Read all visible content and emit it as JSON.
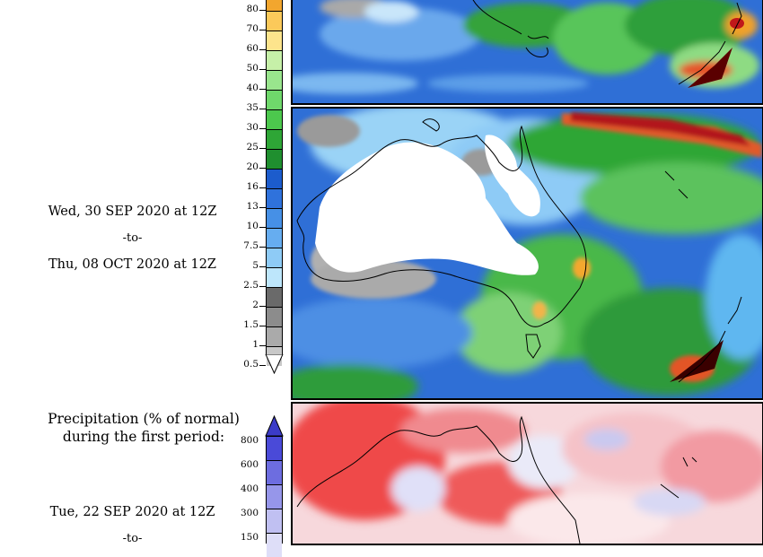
{
  "left_panel": {
    "period2": {
      "start": "Wed, 30 SEP 2020 at 12Z",
      "sep": "-to-",
      "end": "Thu, 08 OCT 2020 at 12Z"
    },
    "section2_title_line1": "Precipitation (% of normal)",
    "section2_title_line2": "during the first period:",
    "period1": {
      "start": "Tue, 22 SEP 2020 at 12Z",
      "sep": "-to-"
    }
  },
  "precip_colorbar": {
    "labels": [
      "80",
      "70",
      "60",
      "50",
      "40",
      "35",
      "30",
      "25",
      "20",
      "16",
      "13",
      "10",
      "7.5",
      "5",
      "2.5",
      "2",
      "1.5",
      "1",
      "0.5"
    ],
    "colors": [
      "#f2a62e",
      "#fbc95a",
      "#fde48c",
      "#c6f0a8",
      "#99e58d",
      "#6fd86b",
      "#4cc84d",
      "#2ea636",
      "#1f8f2f",
      "#1c5ccc",
      "#2f72dc",
      "#4690e6",
      "#66adf0",
      "#8ecbf6",
      "#bde6fb",
      "#6a6a6a",
      "#8c8c8c",
      "#aaaaaa",
      "#c8c8c8"
    ]
  },
  "pct_colorbar": {
    "labels": [
      "800",
      "600",
      "400",
      "300",
      "150"
    ],
    "colors": [
      "#4a4ad8",
      "#6d6de0",
      "#9696ea",
      "#c0c0f2",
      "#dedef8"
    ]
  },
  "maps": [
    {
      "name": "map-top-partial"
    },
    {
      "name": "map-precip-total"
    },
    {
      "name": "map-precip-percent"
    }
  ]
}
